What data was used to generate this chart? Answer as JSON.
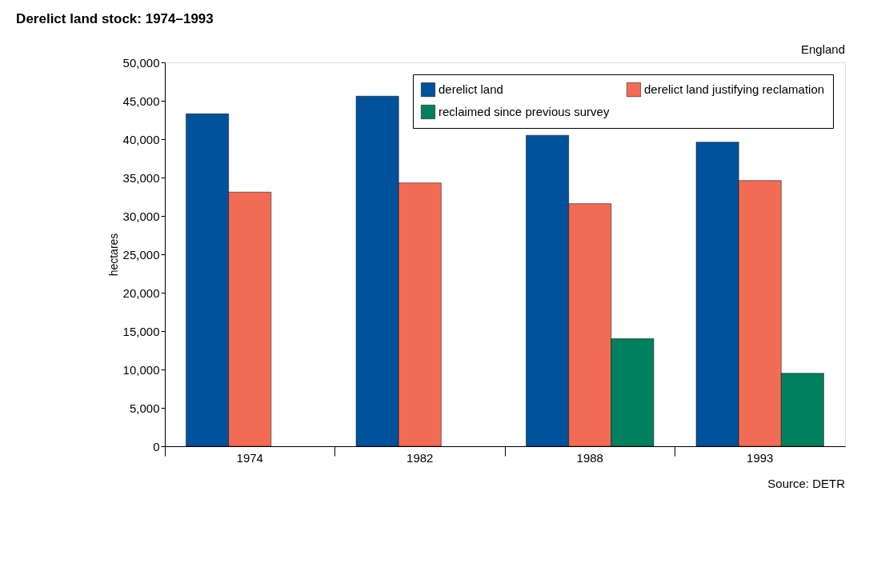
{
  "chart_data": {
    "type": "bar",
    "title": "Derelict land stock: 1974–1993",
    "ylabel": "hectares",
    "categories": [
      "1974",
      "1982",
      "1988",
      "1993"
    ],
    "series": [
      {
        "name": "derelict land",
        "color": "#00529b",
        "values": [
          43300,
          45600,
          40500,
          39600
        ]
      },
      {
        "name": "derelict land justifying reclamation",
        "color": "#f26c55",
        "values": [
          33100,
          34300,
          31600,
          34600
        ]
      },
      {
        "name": "reclaimed since previous survey",
        "color": "#00805f",
        "values": [
          null,
          null,
          14000,
          9500
        ]
      }
    ],
    "ylim": [
      0,
      50000
    ],
    "yticks": [
      0,
      {
        "value": 5000,
        "label": "5,000"
      },
      {
        "value": 10000,
        "label": "10,000"
      },
      {
        "value": 15000,
        "label": "15,000"
      },
      {
        "value": 20000,
        "label": "20,000"
      },
      {
        "value": 25000,
        "label": "25,000"
      },
      {
        "value": 30000,
        "label": "30,000"
      },
      {
        "value": 35000,
        "label": "35,000"
      },
      {
        "value": 40000,
        "label": "40,000"
      },
      {
        "value": 45000,
        "label": "45,000"
      },
      {
        "value": 50000,
        "label": "50,000"
      }
    ],
    "grid": false,
    "legend": "top right",
    "annotations": [
      "England",
      "Source: DETR"
    ]
  }
}
